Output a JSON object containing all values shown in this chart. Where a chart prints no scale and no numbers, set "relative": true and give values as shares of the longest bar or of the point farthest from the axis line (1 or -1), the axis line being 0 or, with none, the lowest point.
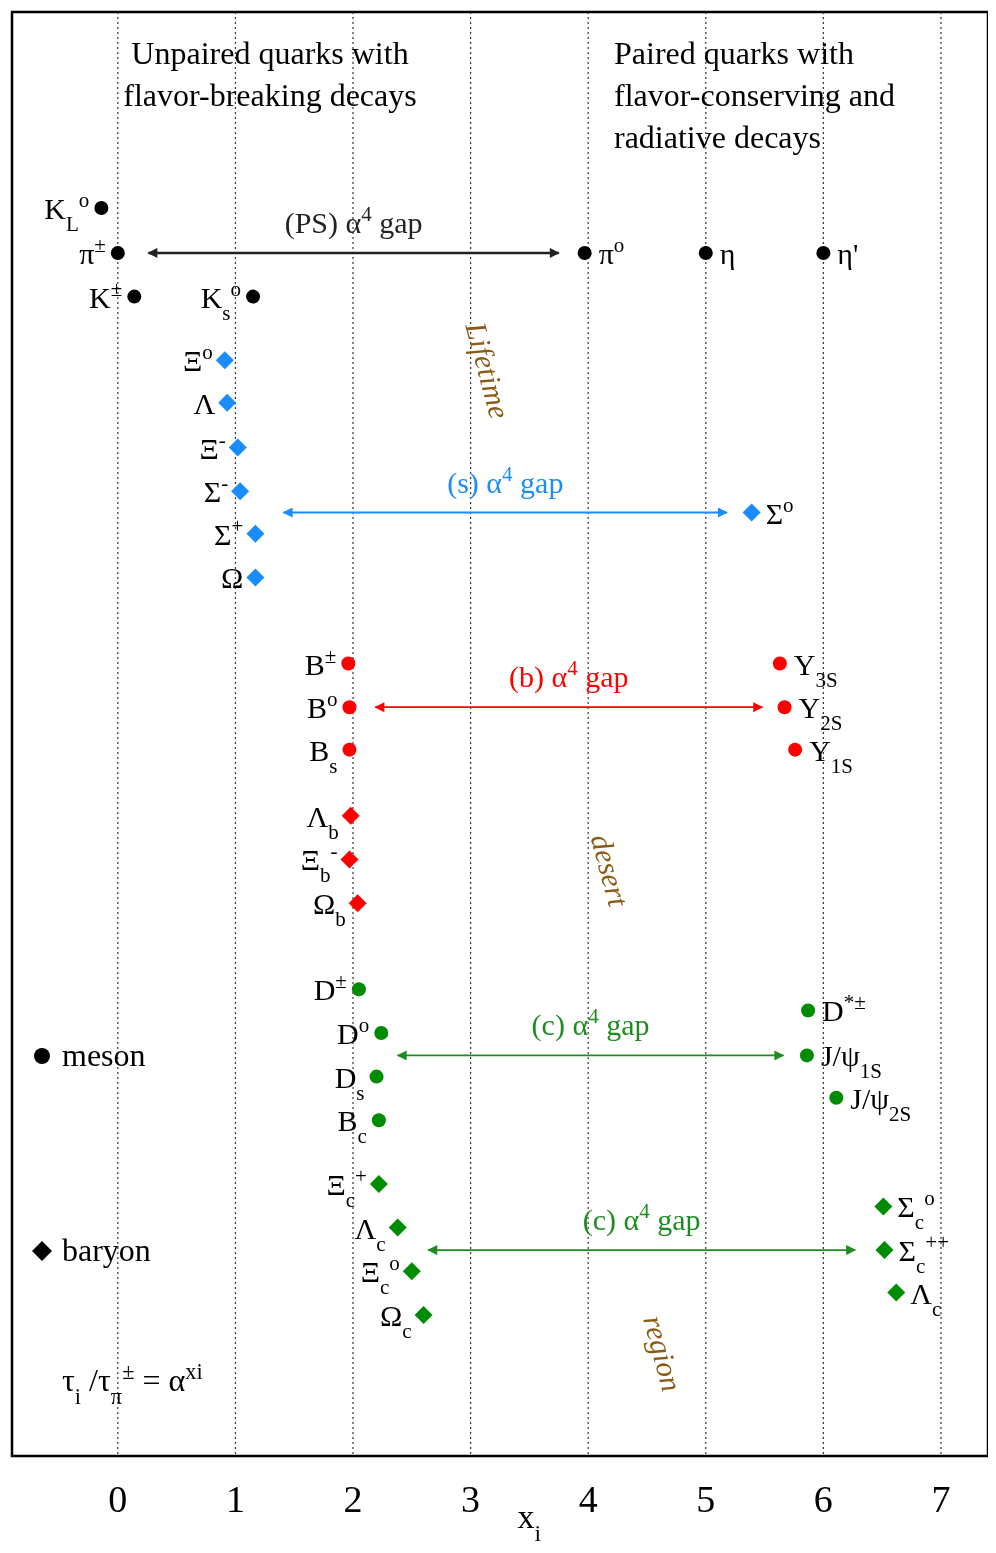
{
  "chart_data": {
    "type": "scatter",
    "relative": true,
    "xlabel": "x$_{i}$",
    "xlim": [
      -0.9,
      7.4
    ],
    "xticks": [
      0,
      1,
      2,
      3,
      4,
      5,
      6,
      7
    ],
    "grid": "x",
    "tick_labels": "x",
    "series": [
      {
        "marker": "circle",
        "color": "#000000",
        "x": [
          -0.14,
          0,
          3.97,
          5.0,
          6.0,
          0.14,
          1.15
        ],
        "values": [
          1.0,
          0.964,
          0.964,
          0.964,
          0.964,
          0.929,
          0.929
        ]
      },
      {
        "marker": "diamond",
        "color": "#1a8cff",
        "x": [
          0.91,
          0.93,
          1.02,
          1.04,
          5.39,
          1.17,
          1.17
        ],
        "values": [
          0.878,
          0.844,
          0.808,
          0.773,
          0.756,
          0.739,
          0.704
        ]
      },
      {
        "marker": "circle",
        "color": "#ff0000",
        "x": [
          1.96,
          1.97,
          1.97,
          5.63,
          5.67,
          5.76
        ],
        "values": [
          0.635,
          0.6,
          0.566,
          0.635,
          0.6,
          0.566
        ]
      },
      {
        "marker": "diamond",
        "color": "#ff0000",
        "x": [
          1.98,
          1.97,
          2.04
        ],
        "values": [
          0.513,
          0.478,
          0.443
        ]
      },
      {
        "marker": "circle",
        "color": "#008c00",
        "x": [
          2.05,
          2.24,
          2.2,
          2.22,
          5.87,
          5.86,
          6.11
        ],
        "values": [
          0.374,
          0.339,
          0.304,
          0.269,
          0.357,
          0.321,
          0.287
        ]
      },
      {
        "marker": "diamond",
        "color": "#008c00",
        "x": [
          2.22,
          2.38,
          2.5,
          2.6,
          6.51,
          6.52,
          6.62
        ],
        "values": [
          0.218,
          0.183,
          0.148,
          0.113,
          0.2,
          0.165,
          0.131
        ]
      },
      {
        "type": "line",
        "name": "(PS) α$^{4}$ gap",
        "color": "#222222",
        "x": [
          0.26,
          3.75
        ],
        "values": [
          0.964,
          0.964
        ]
      },
      {
        "type": "line",
        "name": "(s) α$^{4}$ gap",
        "color": "#1a8cff",
        "x": [
          1.41,
          5.18
        ],
        "values": [
          0.756,
          0.756
        ]
      },
      {
        "type": "line",
        "name": "(b) α$^{4}$ gap",
        "color": "#ff0000",
        "x": [
          2.19,
          5.48
        ],
        "values": [
          0.6,
          0.6
        ]
      },
      {
        "type": "line",
        "name": "(c) α$^{4}$ gap",
        "color": "#1e8c1e",
        "x": [
          2.38,
          5.66
        ],
        "values": [
          0.321,
          0.321
        ]
      },
      {
        "type": "line",
        "name": "(c) α$^{4}$ gap",
        "color": "#1e8c1e",
        "x": [
          2.64,
          6.27
        ],
        "values": [
          0.165,
          0.165
        ]
      }
    ],
    "annotations": [
      "Unpaired quarks with\nflavor-breaking decays",
      "Paired quarks with\nflavor-conserving and\nradiative decays",
      "Lifetime",
      "desert",
      "region",
      "meson",
      "baryon",
      "τ$_{i}$ /τ$_{π}$$^{±}$ = α$^{xi}$",
      {
        "text": "K$_{L}$$^{o}$",
        "x": -0.14,
        "y": 1.0
      },
      {
        "text": "π$^{±}$",
        "x": 0,
        "y": 0.964
      },
      {
        "text": "π$^{o}$",
        "x": 3.97,
        "y": 0.964
      },
      {
        "text": "η",
        "x": 5.0,
        "y": 0.964
      },
      {
        "text": "η'",
        "x": 6.0,
        "y": 0.964
      },
      {
        "text": "K$^{±}$",
        "x": 0.14,
        "y": 0.929
      },
      {
        "text": "K$_{s}$$^{o}$",
        "x": 1.15,
        "y": 0.929
      },
      {
        "text": "Ξ$^{o}$",
        "x": 0.91,
        "y": 0.878
      },
      {
        "text": "Λ",
        "x": 0.93,
        "y": 0.844
      },
      {
        "text": "Ξ$^{-}$",
        "x": 1.02,
        "y": 0.808
      },
      {
        "text": "Σ$^{-}$",
        "x": 1.04,
        "y": 0.773
      },
      {
        "text": "Σ$^{o}$",
        "x": 5.39,
        "y": 0.756
      },
      {
        "text": "Σ$^{+}$",
        "x": 1.17,
        "y": 0.739
      },
      {
        "text": "Ω",
        "x": 1.17,
        "y": 0.704
      },
      {
        "text": "B$^{±}$",
        "x": 1.96,
        "y": 0.635
      },
      {
        "text": "B$^{o}$",
        "x": 1.97,
        "y": 0.6
      },
      {
        "text": "B$_{s}$",
        "x": 1.97,
        "y": 0.566
      },
      {
        "text": "Υ$_{3S}$",
        "x": 5.63,
        "y": 0.635
      },
      {
        "text": "Υ$_{2S}$",
        "x": 5.67,
        "y": 0.6
      },
      {
        "text": "Υ$_{1S}$",
        "x": 5.76,
        "y": 0.566
      },
      {
        "text": "Λ$_{b}$",
        "x": 1.98,
        "y": 0.513
      },
      {
        "text": "Ξ$_{b}$$^{-}$",
        "x": 1.97,
        "y": 0.478
      },
      {
        "text": "Ω$_{b}$",
        "x": 2.04,
        "y": 0.443
      },
      {
        "text": "D$^{±}$",
        "x": 2.05,
        "y": 0.374
      },
      {
        "text": "D$^{o}$",
        "x": 2.24,
        "y": 0.339
      },
      {
        "text": "D$_{s}$",
        "x": 2.2,
        "y": 0.304
      },
      {
        "text": "B$_{c}$",
        "x": 2.22,
        "y": 0.269
      },
      {
        "text": "D$^{*±}$",
        "x": 5.87,
        "y": 0.357
      },
      {
        "text": "J/ψ$_{1S}$",
        "x": 5.86,
        "y": 0.321
      },
      {
        "text": "J/ψ$_{2S}$",
        "x": 6.11,
        "y": 0.287
      },
      {
        "text": "Ξ$_{c}$$^{+}$",
        "x": 2.22,
        "y": 0.218
      },
      {
        "text": "Λ$_{c}$",
        "x": 2.38,
        "y": 0.183
      },
      {
        "text": "Ξ$_{c}$$^{o}$",
        "x": 2.5,
        "y": 0.148
      },
      {
        "text": "Ω$_{c}$",
        "x": 2.6,
        "y": 0.113
      },
      {
        "text": "Σ$_{c}$$^{o}$",
        "x": 6.51,
        "y": 0.2
      },
      {
        "text": "Σ$_{c}$$^{++}$",
        "x": 6.52,
        "y": 0.165
      },
      {
        "text": "Λ$_{c}$",
        "x": 6.62,
        "y": 0.131
      }
    ]
  }
}
